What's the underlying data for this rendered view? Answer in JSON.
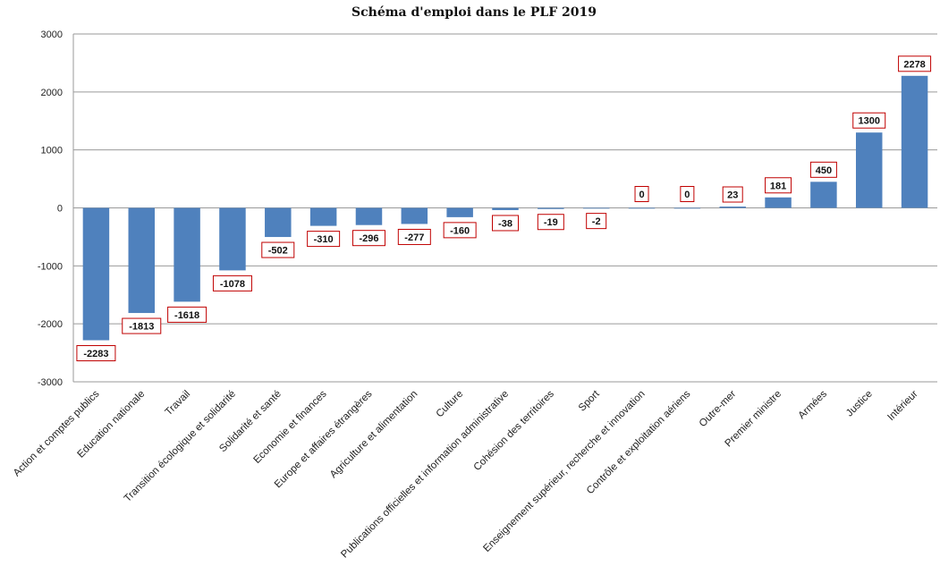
{
  "chart_data": {
    "type": "bar",
    "title": "Schéma d'emploi dans le PLF 2019",
    "xlabel": "",
    "ylabel": "",
    "ylim": [
      -3000,
      3000
    ],
    "yticks": [
      3000,
      2000,
      1000,
      0,
      -1000,
      -2000,
      -3000
    ],
    "grid": true,
    "legend": "none",
    "bar_color": "#4f81bd",
    "label_border_color": "#c00000",
    "categories": [
      "Action et comptes publics",
      "Education nationale",
      "Travail",
      "Transition écologique et solidarité",
      "Solidarité et santé",
      "Economie et finances",
      "Europe et affaires étrangères",
      "Agriculture et alimentation",
      "Culture",
      "Publications officielles et information administrative",
      "Cohésion des territoires",
      "Sport",
      "Enseignement supérieur, recherche et innovation",
      "Contrôle et exploitation aériens",
      "Outre-mer",
      "Premier ministre",
      "Armées",
      "Justice",
      "Intérieur"
    ],
    "values": [
      -2283,
      -1813,
      -1618,
      -1078,
      -502,
      -310,
      -296,
      -277,
      -160,
      -38,
      -19,
      -2,
      0,
      0,
      23,
      181,
      450,
      1300,
      2278
    ]
  }
}
